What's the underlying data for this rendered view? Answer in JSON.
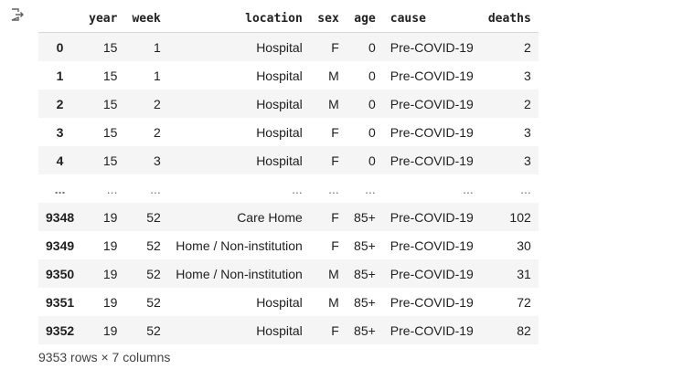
{
  "dataframe": {
    "columns": {
      "index": "",
      "year": "year",
      "week": "week",
      "location": "location",
      "sex": "sex",
      "age": "age",
      "cause": "cause",
      "deaths": "deaths"
    },
    "rows": [
      {
        "index": "0",
        "year": "15",
        "week": "1",
        "location": "Hospital",
        "sex": "F",
        "age": "0",
        "cause": "Pre-COVID-19",
        "deaths": "2"
      },
      {
        "index": "1",
        "year": "15",
        "week": "1",
        "location": "Hospital",
        "sex": "M",
        "age": "0",
        "cause": "Pre-COVID-19",
        "deaths": "3"
      },
      {
        "index": "2",
        "year": "15",
        "week": "2",
        "location": "Hospital",
        "sex": "M",
        "age": "0",
        "cause": "Pre-COVID-19",
        "deaths": "2"
      },
      {
        "index": "3",
        "year": "15",
        "week": "2",
        "location": "Hospital",
        "sex": "F",
        "age": "0",
        "cause": "Pre-COVID-19",
        "deaths": "3"
      },
      {
        "index": "4",
        "year": "15",
        "week": "3",
        "location": "Hospital",
        "sex": "F",
        "age": "0",
        "cause": "Pre-COVID-19",
        "deaths": "3"
      },
      {
        "index": "...",
        "year": "...",
        "week": "...",
        "location": "...",
        "sex": "...",
        "age": "...",
        "cause": "...",
        "deaths": "..."
      },
      {
        "index": "9348",
        "year": "19",
        "week": "52",
        "location": "Care Home",
        "sex": "F",
        "age": "85+",
        "cause": "Pre-COVID-19",
        "deaths": "102"
      },
      {
        "index": "9349",
        "year": "19",
        "week": "52",
        "location": "Home / Non-institution",
        "sex": "F",
        "age": "85+",
        "cause": "Pre-COVID-19",
        "deaths": "30"
      },
      {
        "index": "9350",
        "year": "19",
        "week": "52",
        "location": "Home / Non-institution",
        "sex": "M",
        "age": "85+",
        "cause": "Pre-COVID-19",
        "deaths": "31"
      },
      {
        "index": "9351",
        "year": "19",
        "week": "52",
        "location": "Hospital",
        "sex": "M",
        "age": "85+",
        "cause": "Pre-COVID-19",
        "deaths": "72"
      },
      {
        "index": "9352",
        "year": "19",
        "week": "52",
        "location": "Hospital",
        "sex": "F",
        "age": "85+",
        "cause": "Pre-COVID-19",
        "deaths": "82"
      }
    ],
    "footer": "9353 rows × 7 columns"
  },
  "icons": {
    "output": "output-redirect-icon"
  }
}
